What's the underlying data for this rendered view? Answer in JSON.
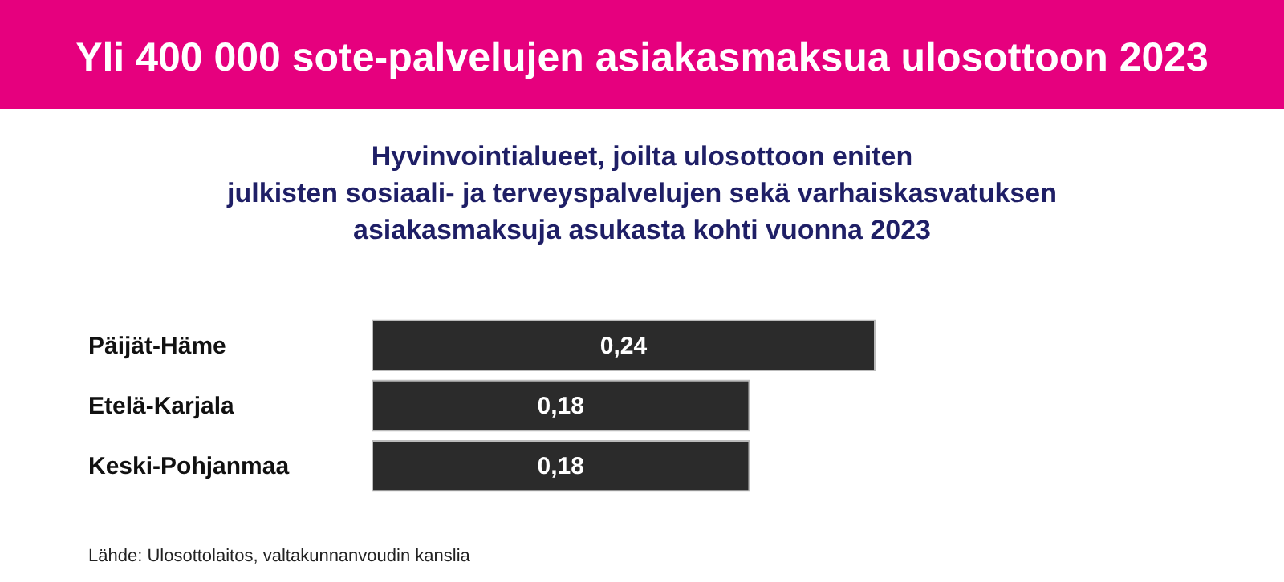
{
  "chart_data": {
    "type": "bar",
    "orientation": "horizontal",
    "title": "Yli 400 000 sote-palvelujen asiakasmaksua ulosottoon 2023",
    "subtitle": "Hyvinvointialueet, joilta ulosottoon eniten\njulkisten sosiaali- ja terveyspalvelujen sekä varhaiskasvatuksen\nasiakasmaksuja asukasta kohti vuonna 2023",
    "categories": [
      "Päijät-Häme",
      "Etelä-Karjala",
      "Keski-Pohjanmaa"
    ],
    "values": [
      0.24,
      0.18,
      0.18
    ],
    "value_labels": [
      "0,24",
      "0,18",
      "0,18"
    ],
    "color": "#2b2b2b",
    "annotations": [
      "Lähde: Ulosottolaitos, valtakunnanvoudin kanslia"
    ]
  }
}
